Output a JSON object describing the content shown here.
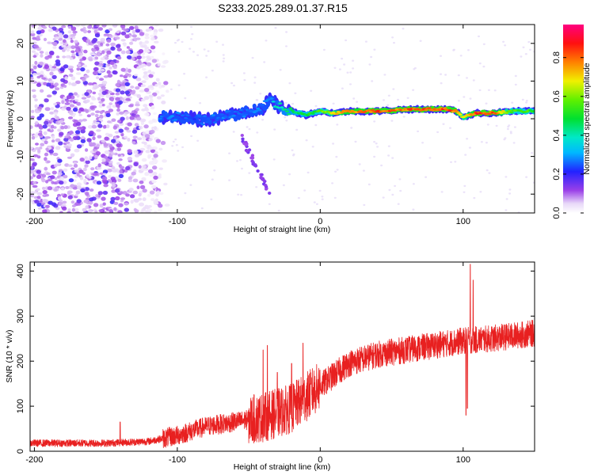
{
  "title": "S233.2025.289.01.37.R15",
  "colors": {
    "snr_line": "#e82020",
    "axis": "#000000",
    "background": "#ffffff"
  },
  "chart_data": [
    {
      "type": "heatmap",
      "name": "spectrogram",
      "xlabel": "Height of straight line (km)",
      "ylabel": "Frequency (Hz)",
      "xlim": [
        -203,
        150
      ],
      "ylim": [
        -25,
        25
      ],
      "xticks": [
        "-200",
        "-100",
        "0",
        "100"
      ],
      "xtick_values": [
        -200,
        -100,
        0,
        100
      ],
      "yticks": [
        "-20",
        "-10",
        "0",
        "10",
        "20"
      ],
      "ytick_values": [
        -20,
        -10,
        0,
        10,
        20
      ],
      "colorbar": {
        "label": "Normalized spectral amplitude",
        "range": [
          0,
          0.97
        ],
        "ticks": [
          "0.0",
          "0.2",
          "0.4",
          "0.6",
          "0.8"
        ],
        "tick_values": [
          0.0,
          0.2,
          0.4,
          0.6,
          0.8
        ],
        "colormap": "rainbow (white-violet-blue-cyan-green-yellow-orange-red-magenta)"
      },
      "signal_track": {
        "description": "frequency of the dominant spectral peak vs height",
        "height_km": [
          -112,
          -100,
          -90,
          -80,
          -70,
          -60,
          -50,
          -40,
          -35,
          -30,
          -20,
          -10,
          0,
          10,
          20,
          40,
          60,
          80,
          90,
          95,
          100,
          110,
          120,
          135,
          150
        ],
        "frequency_hz": [
          0.5,
          0.5,
          0.0,
          -0.5,
          0.5,
          1.0,
          2.0,
          3.0,
          5.0,
          3.5,
          2.0,
          1.0,
          2.0,
          1.5,
          2.0,
          2.0,
          2.5,
          2.5,
          2.5,
          2.0,
          0.5,
          1.5,
          1.5,
          2.0,
          2.0
        ],
        "peak_amplitude": [
          0.3,
          0.3,
          0.25,
          0.3,
          0.3,
          0.3,
          0.3,
          0.3,
          0.3,
          0.45,
          0.5,
          0.55,
          0.6,
          0.75,
          0.85,
          0.9,
          0.9,
          0.92,
          0.92,
          0.85,
          0.7,
          0.92,
          0.92,
          0.6,
          0.6
        ]
      },
      "noise_region": {
        "height_km": [
          -203,
          -105
        ],
        "frequency_hz": [
          -25,
          25
        ],
        "amplitude_range": [
          0.05,
          0.15
        ]
      },
      "secondary_feature": {
        "height_km": [
          -55,
          -35
        ],
        "frequency_hz": [
          -20,
          -5
        ]
      }
    },
    {
      "type": "line",
      "name": "snr",
      "xlabel": "Height of straight line (km)",
      "ylabel": "SNR (10 * v/v)",
      "xlim": [
        -203,
        150
      ],
      "ylim": [
        0,
        420
      ],
      "xticks": [
        "-200",
        "-100",
        "0",
        "100"
      ],
      "xtick_values": [
        -200,
        -100,
        0,
        100
      ],
      "yticks": [
        "0",
        "100",
        "200",
        "300",
        "400"
      ],
      "ytick_values": [
        0,
        100,
        200,
        300,
        400
      ],
      "trend": {
        "height_km": [
          -203,
          -150,
          -120,
          -100,
          -80,
          -60,
          -40,
          -30,
          -20,
          -10,
          0,
          10,
          20,
          40,
          60,
          80,
          100,
          120,
          150
        ],
        "snr": [
          18,
          18,
          22,
          35,
          55,
          65,
          75,
          85,
          95,
          120,
          145,
          170,
          195,
          215,
          225,
          235,
          245,
          250,
          262
        ]
      },
      "spikes": {
        "height_km": [
          -140,
          -40,
          -37,
          -30,
          -20,
          -12,
          105,
          107,
          103,
          102
        ],
        "snr": [
          65,
          225,
          235,
          175,
          195,
          240,
          415,
          380,
          95,
          80
        ]
      }
    }
  ]
}
